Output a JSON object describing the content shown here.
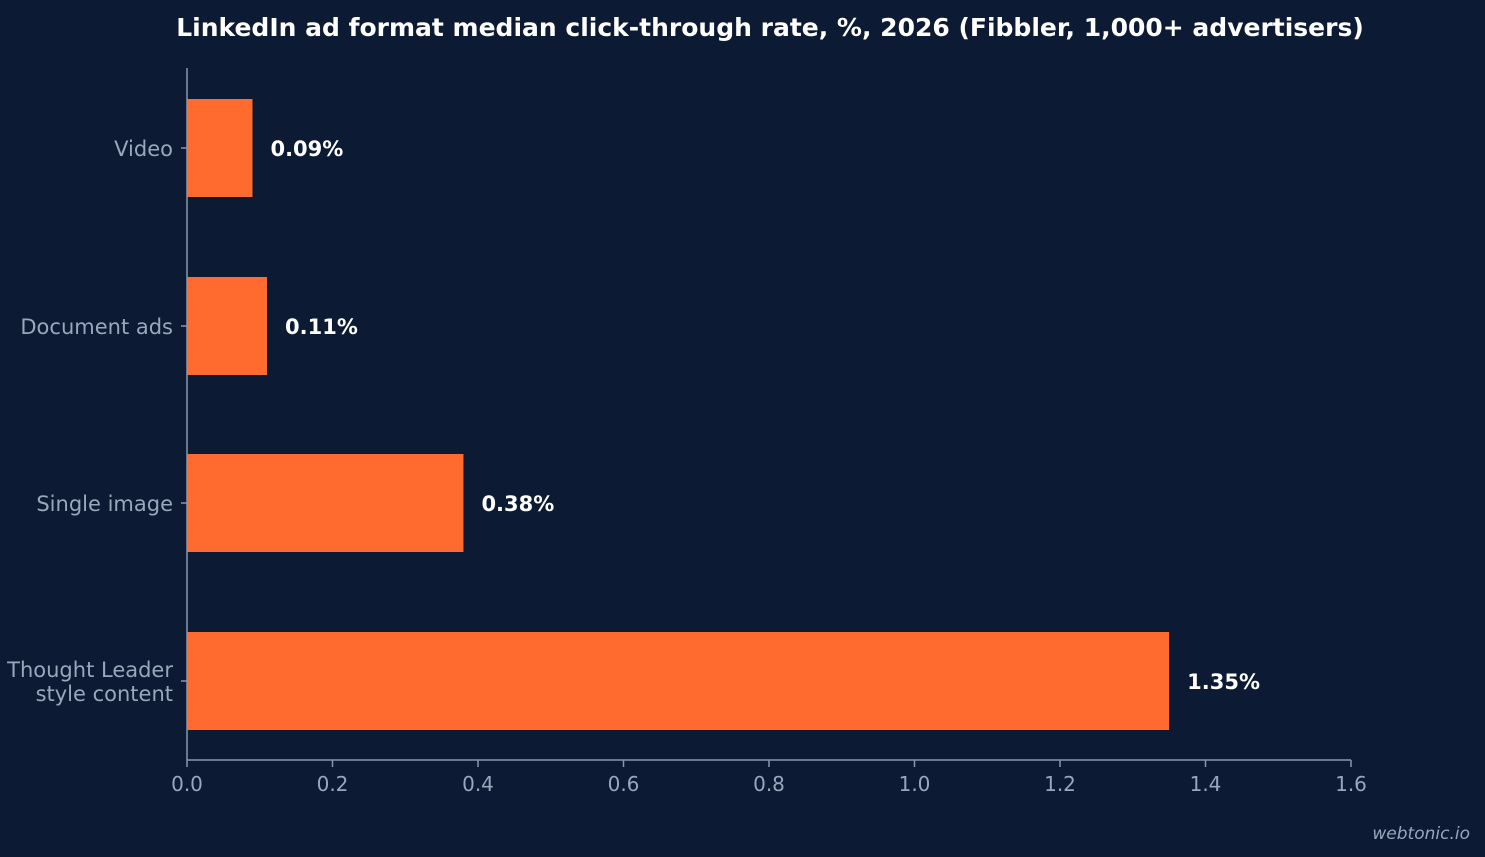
{
  "chart_data": {
    "type": "bar",
    "orientation": "horizontal",
    "title": "LinkedIn ad format median click-through rate, %, 2026 (Fibbler, 1,000+ advertisers)",
    "categories": [
      [
        "Video"
      ],
      [
        "Document ads"
      ],
      [
        "Single image"
      ],
      [
        "Thought Leader",
        "style content"
      ]
    ],
    "values": [
      0.09,
      0.11,
      0.38,
      1.35
    ],
    "data_labels": [
      "0.09%",
      "0.11%",
      "0.38%",
      "1.35%"
    ],
    "xlim": [
      0,
      1.6
    ],
    "x_ticks": [
      "0.0",
      "0.2",
      "0.4",
      "0.6",
      "0.8",
      "1.0",
      "1.2",
      "1.4",
      "1.6"
    ],
    "grid": false,
    "bar_color": "#ff6b2e",
    "background_color": "#0c1a33"
  },
  "watermark": "webtonic.io"
}
